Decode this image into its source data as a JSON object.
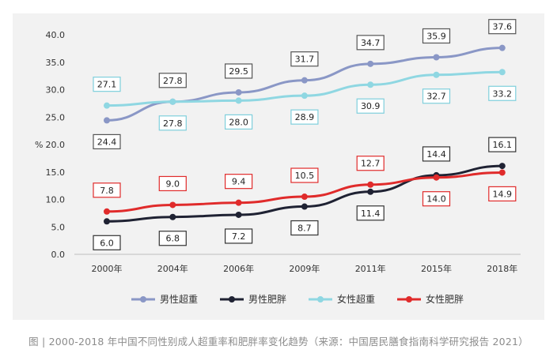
{
  "caption": "图 | 2000-2018 年中国不同性别成人超重率和肥胖率变化趋势（来源：中国居民膳食指南科学研究报告 2021）",
  "chart_data": {
    "type": "line",
    "ylabel": "%",
    "ylim": [
      0,
      40
    ],
    "yticks": [
      "0.0",
      "5.0",
      "10.0",
      "15.0",
      "20.0",
      "25.0",
      "30.0",
      "35.0",
      "40.0"
    ],
    "categories": [
      "2000年",
      "2004年",
      "2006年",
      "2009年",
      "2011年",
      "2015年",
      "2018年"
    ],
    "grid": false,
    "legend_position": "bottom",
    "series": [
      {
        "name": "男性超重",
        "color": "#8a97c6",
        "label_border": "#555555",
        "values": [
          24.4,
          27.8,
          29.5,
          31.7,
          34.7,
          35.9,
          37.6
        ],
        "label_text": [
          "24.4",
          "27.8",
          "29.5",
          "31.7",
          "34.7",
          "35.9",
          "37.6"
        ],
        "label_pos": [
          "below",
          "above",
          "above",
          "above",
          "above",
          "above",
          "above"
        ]
      },
      {
        "name": "男性肥胖",
        "color": "#1f2233",
        "label_border": "#333333",
        "values": [
          6.0,
          6.8,
          7.2,
          8.7,
          11.4,
          14.4,
          16.1
        ],
        "label_text": [
          "6.0",
          "6.8",
          "7.2",
          "8.7",
          "11.4",
          "14.4",
          "16.1"
        ],
        "label_pos": [
          "below",
          "below",
          "below",
          "below",
          "below",
          "above",
          "above"
        ]
      },
      {
        "name": "女性超重",
        "color": "#8fd7e2",
        "label_border": "#7fcfdc",
        "values": [
          27.1,
          27.8,
          28.0,
          28.9,
          30.9,
          32.7,
          33.2
        ],
        "label_text": [
          "27.1",
          "27.8",
          "28.0",
          "28.9",
          "30.9",
          "32.7",
          "33.2"
        ],
        "label_pos": [
          "above",
          "below",
          "below",
          "below",
          "below",
          "below",
          "below"
        ]
      },
      {
        "name": "女性肥胖",
        "color": "#e02b2b",
        "label_border": "#e02b2b",
        "values": [
          7.8,
          9.0,
          9.4,
          10.5,
          12.7,
          14.0,
          14.9
        ],
        "label_text": [
          "7.8",
          "9.0",
          "9.4",
          "10.5",
          "12.7",
          "14.0",
          "14.9"
        ],
        "label_pos": [
          "above",
          "above",
          "above",
          "above",
          "above",
          "below",
          "below"
        ]
      }
    ]
  }
}
